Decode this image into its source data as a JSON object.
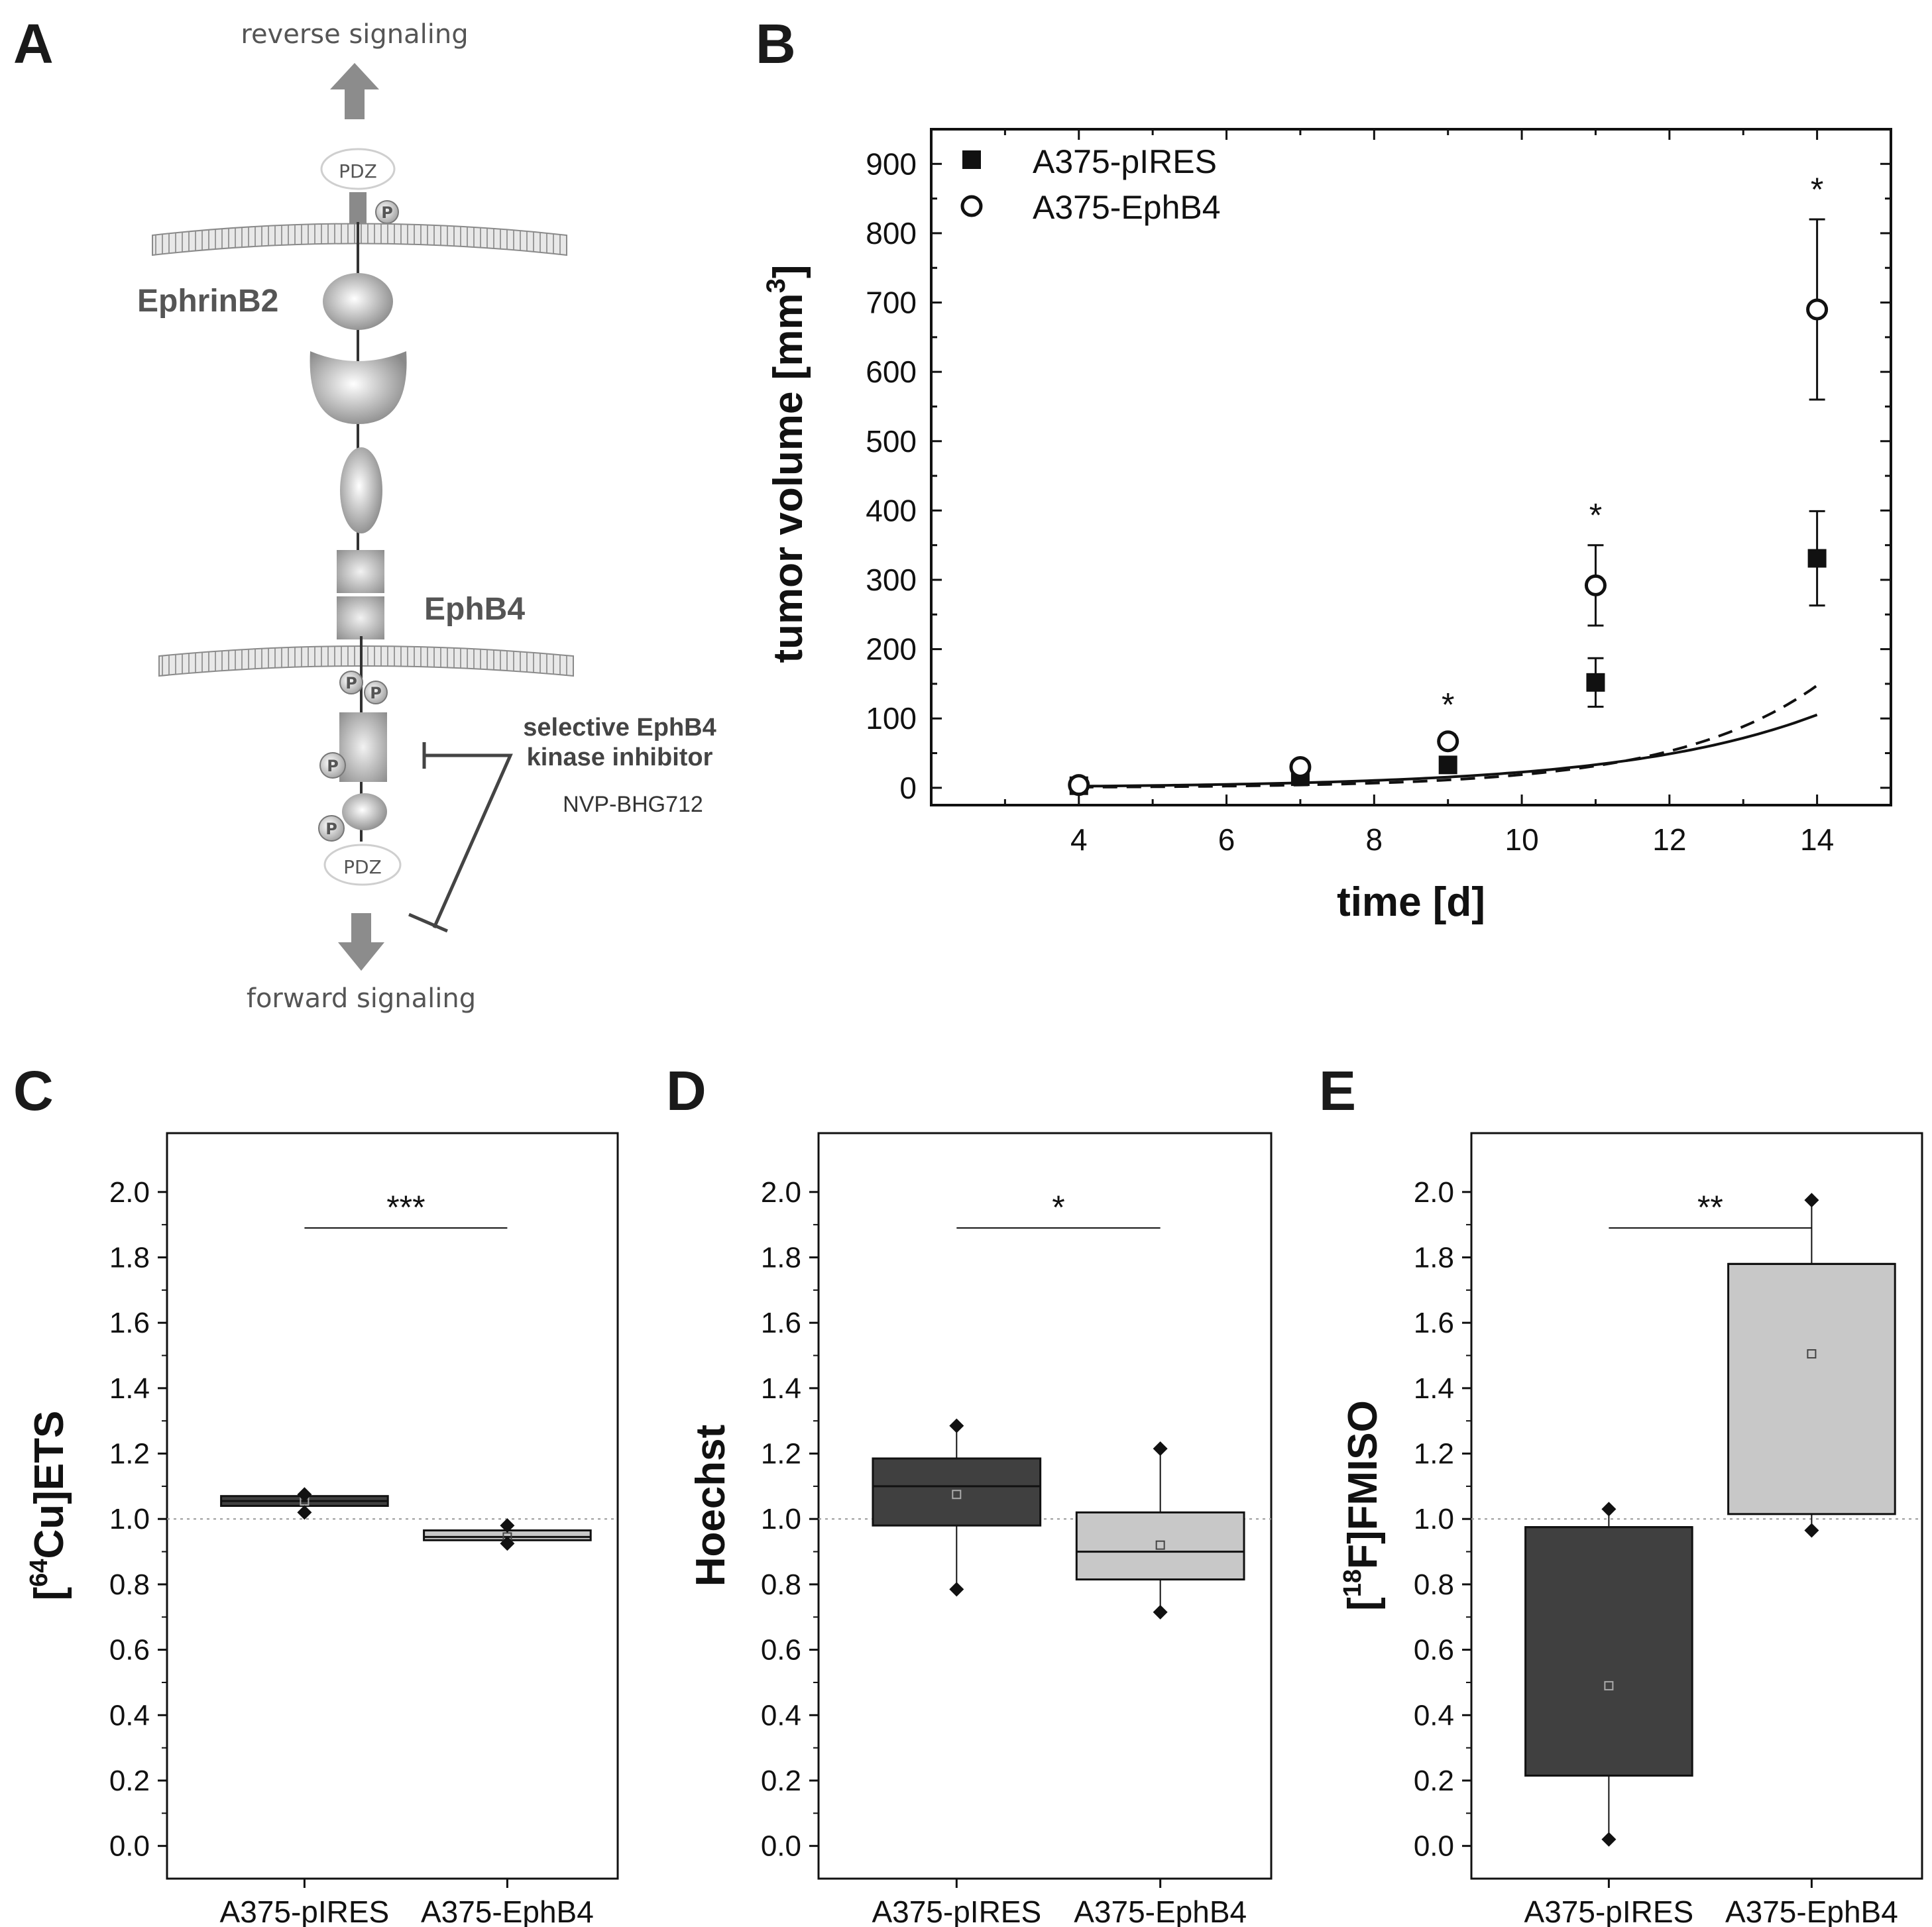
{
  "panel_labels": {
    "a": "A",
    "b": "B",
    "c": "C",
    "d": "D",
    "e": "E"
  },
  "colors": {
    "pires": "#404040",
    "ephb4": "#c8c8c8",
    "axis": "#111111",
    "diagram_gray": "#8c8c8c"
  },
  "diagram": {
    "reverse_signaling": "reverse signaling",
    "forward_signaling": "forward signaling",
    "pdz_top": "PDZ",
    "pdz_bottom": "PDZ",
    "phospho": "P",
    "ephrinb2": "EphrinB2",
    "ephb4": "EphB4",
    "inhibitor_line1": "selective EphB4",
    "inhibitor_line2": "kinase inhibitor",
    "inhibitor_name": "NVP-BHG712"
  },
  "chart_data": [
    {
      "id": "B",
      "type": "scatter",
      "xlabel": "time [d]",
      "ylabel": "tumor volume [mm",
      "ylabel_sup": "3",
      "ylabel_close": "]",
      "xlim": [
        2,
        15
      ],
      "ylim": [
        -25,
        950
      ],
      "xticks": [
        4,
        6,
        8,
        10,
        12,
        14
      ],
      "yticks": [
        0,
        100,
        200,
        300,
        400,
        500,
        600,
        700,
        800,
        900
      ],
      "legend_position": "top-left",
      "series": [
        {
          "name": "A375-pIRES",
          "marker": "filled-square",
          "fit": "solid",
          "x": [
            4,
            7,
            9,
            11,
            14
          ],
          "y": [
            3,
            16,
            33,
            152,
            331
          ],
          "err": [
            2,
            5,
            8,
            35,
            68
          ],
          "fit_a": 1.55,
          "fit_b": 0.3835
        },
        {
          "name": "A375-EphB4",
          "marker": "open-circle",
          "fit": "dashed",
          "x": [
            4,
            7,
            9,
            11,
            14
          ],
          "y": [
            4,
            30,
            67,
            292,
            690
          ],
          "err": [
            2,
            6,
            10,
            58,
            130
          ],
          "fit_a": 0.52,
          "fit_b": 0.5135
        }
      ],
      "annotations": [
        {
          "x": 9,
          "text": "*"
        },
        {
          "x": 11,
          "text": "*"
        },
        {
          "x": 14,
          "text": "*"
        }
      ]
    },
    {
      "id": "C",
      "type": "box",
      "ylabel": "Cu]ETS",
      "ylabel_prefix": "[",
      "ylabel_sup": "64",
      "ylim": [
        -0.1,
        2.18
      ],
      "yticks": [
        "0.0",
        "0.2",
        "0.4",
        "0.6",
        "0.8",
        "1.0",
        "1.2",
        "1.4",
        "1.6",
        "1.8",
        "2.0"
      ],
      "reference_line": 1.0,
      "categories": [
        "A375-pIRES",
        "A375-EphB4"
      ],
      "boxes": [
        {
          "q1": 1.04,
          "median": 1.055,
          "q3": 1.07,
          "mean": 1.055,
          "whisker_low": 1.02,
          "whisker_high": 1.075,
          "extremes": [
            1.02,
            1.075
          ]
        },
        {
          "q1": 0.935,
          "median": 0.945,
          "q3": 0.965,
          "mean": 0.945,
          "whisker_low": 0.925,
          "whisker_high": 0.98,
          "extremes": [
            0.925,
            0.98
          ]
        }
      ],
      "significance": "***",
      "sig_y": 1.89
    },
    {
      "id": "D",
      "type": "box",
      "ylabel": "Hoechst",
      "ylim": [
        -0.1,
        2.18
      ],
      "yticks": [
        "0.0",
        "0.2",
        "0.4",
        "0.6",
        "0.8",
        "1.0",
        "1.2",
        "1.4",
        "1.6",
        "1.8",
        "2.0"
      ],
      "reference_line": 1.0,
      "categories": [
        "A375-pIRES",
        "A375-EphB4"
      ],
      "boxes": [
        {
          "q1": 0.98,
          "median": 1.1,
          "q3": 1.185,
          "mean": 1.075,
          "whisker_low": 0.785,
          "whisker_high": 1.285,
          "extremes": [
            0.785,
            1.285
          ]
        },
        {
          "q1": 0.815,
          "median": 0.9,
          "q3": 1.02,
          "mean": 0.92,
          "whisker_low": 0.715,
          "whisker_high": 1.215,
          "extremes": [
            0.715,
            1.215
          ]
        }
      ],
      "significance": "*",
      "sig_y": 1.89
    },
    {
      "id": "E",
      "type": "box",
      "ylabel": "F]FMISO",
      "ylabel_prefix": "[",
      "ylabel_sup": "18",
      "ylim": [
        -0.1,
        2.18
      ],
      "yticks": [
        "0.0",
        "0.2",
        "0.4",
        "0.6",
        "0.8",
        "1.0",
        "1.2",
        "1.4",
        "1.6",
        "1.8",
        "2.0"
      ],
      "reference_line": 1.0,
      "categories": [
        "A375-pIRES",
        "A375-EphB4"
      ],
      "boxes": [
        {
          "q1": 0.215,
          "median": 0.975,
          "q3": 0.975,
          "mean": 0.49,
          "whisker_low": 0.02,
          "whisker_high": 1.03,
          "extremes": [
            0.02,
            1.03
          ]
        },
        {
          "q1": 1.015,
          "median": 1.78,
          "q3": 1.78,
          "mean": 1.505,
          "whisker_low": 0.965,
          "whisker_high": 1.975,
          "extremes": [
            0.965,
            1.975
          ]
        }
      ],
      "significance": "**",
      "sig_y": 1.89
    }
  ]
}
